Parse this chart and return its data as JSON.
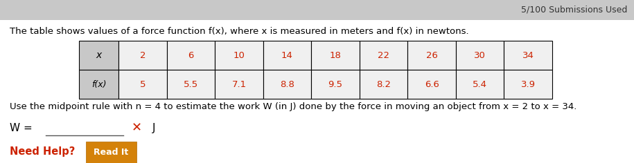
{
  "title_top_right": "5/100 Submissions Used",
  "main_text": "The table shows values of a force function f(x), where x is measured in meters and f(x) in newtons.",
  "x_label": "x",
  "fx_label": "f(x)",
  "x_values": [
    "2",
    "6",
    "10",
    "14",
    "18",
    "22",
    "26",
    "30",
    "34"
  ],
  "fx_values": [
    "5",
    "5.5",
    "7.1",
    "8.8",
    "9.5",
    "8.2",
    "6.6",
    "5.4",
    "3.9"
  ],
  "midpoint_text": "Use the midpoint rule with n = 4 to estimate the work W (in J) done by the force in moving an object from x = 2 to x = 34.",
  "w_label": "W =",
  "j_label": "J",
  "need_help": "Need Help?",
  "read_it": "Read It",
  "bg_color": "#ffffff",
  "header_cell_bg": "#c8c8c8",
  "data_cell_bg": "#f0f0f0",
  "table_border": "#000000",
  "red_color": "#cc2200",
  "orange_btn": "#d4820a",
  "text_color": "#000000",
  "gray_top": "#c8c8c8"
}
